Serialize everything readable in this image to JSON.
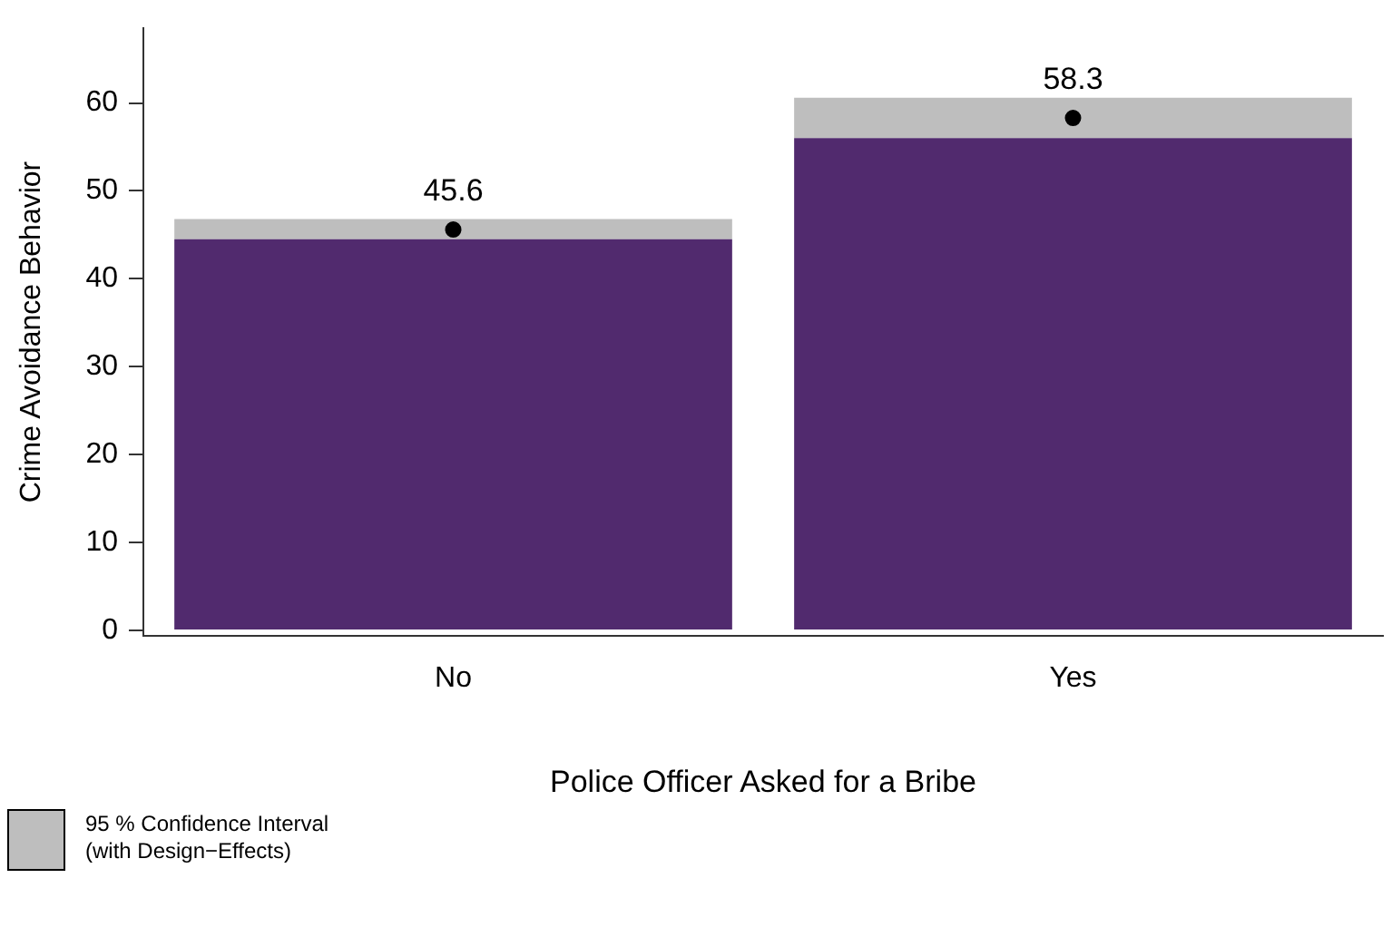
{
  "chart_data": {
    "type": "bar",
    "stacked": true,
    "xlabel": "Police Officer Asked for a Bribe",
    "ylabel": "Crime Avoidance Behavior",
    "categories": [
      "No",
      "Yes"
    ],
    "series": [
      {
        "color": "#512a6e",
        "values": [
          44.5,
          56.0
        ]
      },
      {
        "name": "95 % Confidence Interval\n(with Design−Effects)",
        "color": "#bebebe",
        "values": [
          2.3,
          4.6
        ]
      },
      {
        "type": "scatter",
        "color": "#000000",
        "x": [
          "No",
          "Yes"
        ],
        "values": [
          45.6,
          58.3
        ],
        "value_labels": [
          "45.6",
          "58.3"
        ]
      }
    ],
    "ylim": [
      -0.6,
      68.5
    ],
    "yticks": [
      0,
      10,
      20,
      30,
      40,
      50,
      60
    ],
    "grid": false,
    "legend": "bottom left",
    "marker": "circle"
  }
}
